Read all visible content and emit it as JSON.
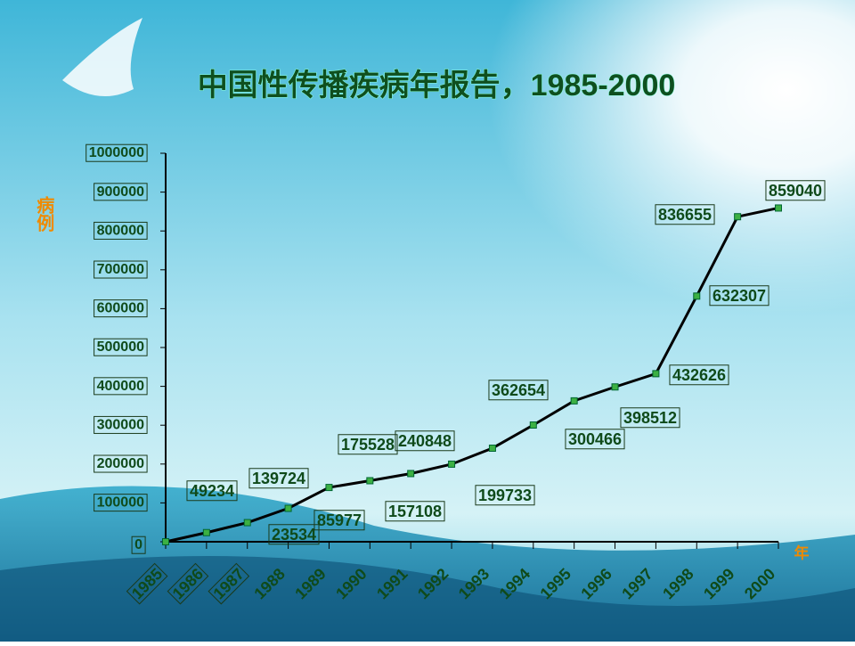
{
  "chart_data": {
    "type": "line",
    "title": "中国性传播疾病年报告，1985-2000",
    "y_label": "病例",
    "x_label": "年",
    "categories": [
      "1985",
      "1986",
      "1987",
      "1988",
      "1989",
      "1990",
      "1991",
      "1992",
      "1993",
      "1994",
      "1995",
      "1996",
      "1997",
      "1998",
      "1999",
      "2000"
    ],
    "series": [
      {
        "name": "病例",
        "color": "#000000",
        "values": [
          0,
          23534,
          49234,
          85977,
          139724,
          157108,
          175528,
          199733,
          240848,
          300466,
          362654,
          398512,
          432626,
          632307,
          836655,
          859040
        ],
        "value_labels": [
          null,
          "23534",
          "49234",
          "85977",
          "139724",
          "157108",
          "175528",
          "199733",
          "240848",
          "300466",
          "362654",
          "398512",
          "432626",
          "632307",
          "836655",
          "859040"
        ]
      }
    ],
    "ylim": [
      0,
      1000000
    ],
    "yticks": [
      0,
      100000,
      200000,
      300000,
      400000,
      500000,
      600000,
      700000,
      800000,
      900000,
      1000000
    ]
  }
}
